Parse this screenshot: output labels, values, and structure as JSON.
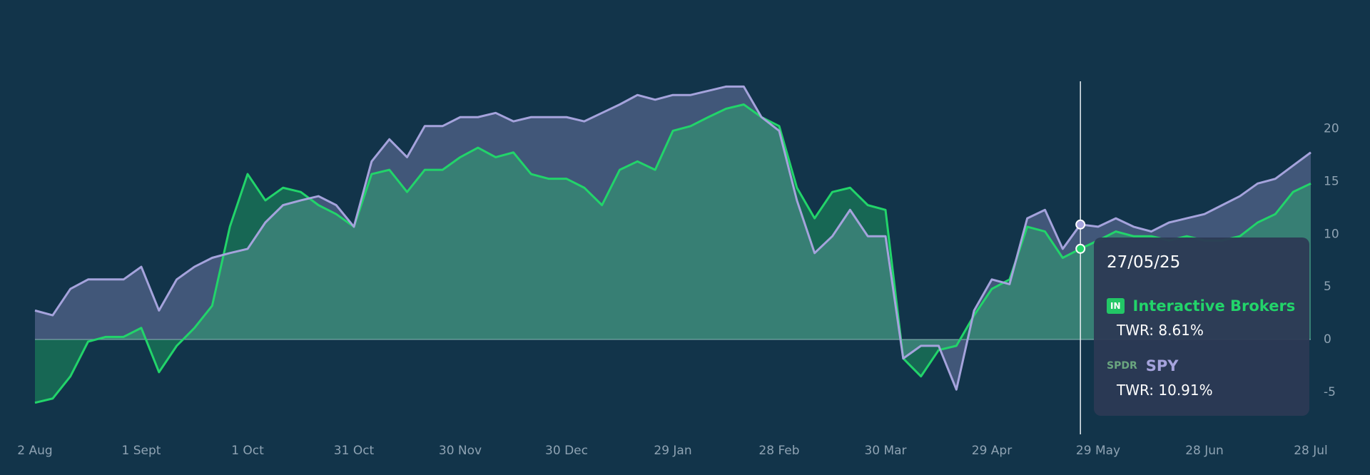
{
  "chart_data": {
    "type": "line",
    "categories": [
      "2 Aug",
      null,
      null,
      null,
      null,
      null,
      "1 Sept",
      null,
      null,
      null,
      null,
      null,
      "1 Oct",
      null,
      null,
      null,
      null,
      null,
      "31 Oct",
      null,
      null,
      null,
      null,
      null,
      "30 Nov",
      null,
      null,
      null,
      null,
      null,
      "30 Dec",
      null,
      null,
      null,
      null,
      null,
      "29 Jan",
      null,
      null,
      null,
      null,
      null,
      "28 Feb",
      null,
      null,
      null,
      null,
      null,
      "30 Mar",
      null,
      null,
      null,
      null,
      null,
      "29 Apr",
      null,
      null,
      null,
      null,
      null,
      "29 May",
      null,
      null,
      null,
      null,
      null,
      "28 Jun",
      null,
      null,
      null,
      null,
      null,
      "28 Jul"
    ],
    "series": [
      {
        "name": "Interactive Brokers",
        "color": "#22d46a",
        "values": [
          -6,
          -5.6,
          -3.5,
          -0.2,
          0.25,
          0.25,
          1.1,
          -3.1,
          -0.6,
          1.1,
          3.2,
          10.7,
          15.7,
          13.2,
          14.4,
          14,
          12.75,
          11.9,
          10.7,
          15.7,
          16.1,
          14,
          16.1,
          16.1,
          17.3,
          18.2,
          17.3,
          17.75,
          15.7,
          15.25,
          15.25,
          14.4,
          12.75,
          16.1,
          16.9,
          16.1,
          19.8,
          20.25,
          21.1,
          21.9,
          22.3,
          21.1,
          20.25,
          14.4,
          11.5,
          14,
          14.4,
          12.75,
          12.3,
          -1.8,
          -3.5,
          -1,
          -0.6,
          2.3,
          4.8,
          5.7,
          10.7,
          10.25,
          7.75,
          8.61,
          9.4,
          10.25,
          9.8,
          9.8,
          9.4,
          9.8,
          9.4,
          9.4,
          9.8,
          11.1,
          11.9,
          14,
          14.8
        ]
      },
      {
        "name": "SPY",
        "color": "#a5a3dc",
        "values": [
          2.75,
          2.3,
          4.8,
          5.7,
          5.7,
          5.7,
          6.9,
          2.75,
          5.7,
          6.9,
          7.75,
          8.2,
          8.6,
          11.1,
          12.75,
          13.2,
          13.6,
          12.75,
          10.7,
          16.9,
          19,
          17.3,
          20.25,
          20.25,
          21.1,
          21.1,
          21.5,
          20.7,
          21.1,
          21.1,
          21.1,
          20.7,
          21.5,
          22.3,
          23.2,
          22.75,
          23.2,
          23.2,
          23.6,
          24,
          24,
          21.1,
          19.8,
          13.2,
          8.2,
          9.8,
          12.3,
          9.8,
          9.8,
          -1.8,
          -0.6,
          -0.6,
          -4.75,
          2.75,
          5.7,
          5.25,
          11.5,
          12.3,
          8.6,
          10.91,
          10.7,
          11.5,
          10.7,
          10.25,
          11.1,
          11.5,
          11.9,
          12.75,
          13.6,
          14.8,
          15.25,
          16.5,
          17.75
        ]
      }
    ],
    "ylim": [
      -9,
      24.5
    ],
    "yticks": [
      -5,
      0,
      5,
      10,
      15,
      20
    ],
    "grid": false
  },
  "tooltip": {
    "date": "27/05/25",
    "entries": [
      {
        "badge": "IN",
        "text": "TWR: 8.61%"
      },
      {
        "badge": "SPDR",
        "text": "TWR: 10.91%"
      }
    ]
  }
}
